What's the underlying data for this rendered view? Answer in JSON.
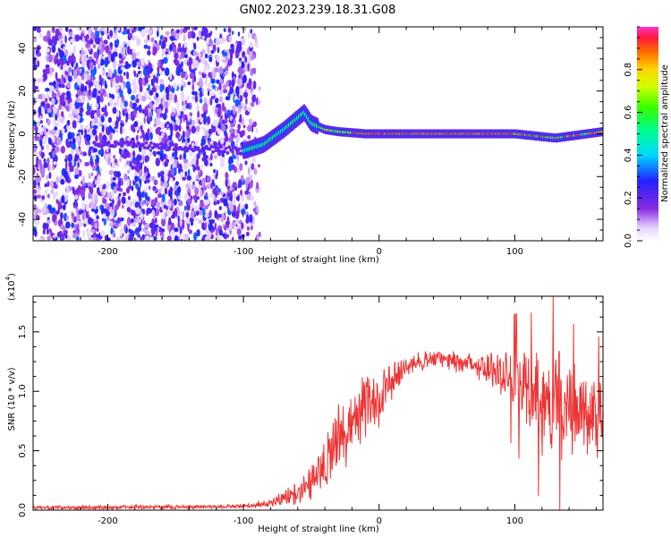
{
  "title": "GN02.2023.239.18.31.G08",
  "colors": {
    "snr_line": "#ee3333",
    "frame": "#000000",
    "grid": "#ffffff"
  },
  "chart_data": [
    {
      "type": "heatmap",
      "name": "spectrogram",
      "xlabel": "Height of straight line (km)",
      "ylabel": "Frequency (Hz)",
      "xlim": [
        -255,
        165
      ],
      "ylim": [
        -50,
        50
      ],
      "xticks": [
        -200,
        -100,
        0,
        100
      ],
      "xtick_labels": [
        "-200",
        "-100",
        "0",
        "100"
      ],
      "yticks": [
        -40,
        -20,
        0,
        20,
        40
      ],
      "ytick_labels": [
        "-40",
        "-20",
        "0",
        "20",
        "40"
      ],
      "colorbar": {
        "label": "Normalized spectral amplitude",
        "range": [
          0.0,
          1.0
        ],
        "ticks": [
          0.0,
          0.2,
          0.4,
          0.6,
          0.8
        ],
        "tick_labels": [
          "0.0",
          "0.2",
          "0.4",
          "0.6",
          "0.8"
        ],
        "colormap": "rainbow-white"
      },
      "signal_track": {
        "description_points_km_hz": [
          [
            -100,
            -8
          ],
          [
            -85,
            -5
          ],
          [
            -70,
            2
          ],
          [
            -55,
            10
          ],
          [
            -50,
            5
          ],
          [
            -40,
            2
          ],
          [
            -30,
            1
          ],
          [
            -10,
            0
          ],
          [
            50,
            0
          ],
          [
            100,
            0
          ],
          [
            130,
            -2
          ],
          [
            165,
            1
          ]
        ],
        "noise_region_km": [
          -255,
          -88
        ]
      }
    },
    {
      "type": "line",
      "name": "snr",
      "xlabel": "Height of straight line (km)",
      "ylabel": "SNR (10 * v/v)",
      "scale_label": "(x10",
      "scale_exponent": "4",
      "scale_close": ")",
      "xlim": [
        -255,
        165
      ],
      "ylim": [
        0,
        18000
      ],
      "xticks": [
        -200,
        -100,
        0,
        100
      ],
      "xtick_labels": [
        "-200",
        "-100",
        "0",
        "100"
      ],
      "yticks": [
        0,
        5000,
        10000,
        15000
      ],
      "ytick_labels": [
        "0.0",
        "0.5",
        "1.0",
        "1.5"
      ],
      "envelope": {
        "x": [
          -255,
          -100,
          -80,
          -60,
          -50,
          -40,
          -30,
          -20,
          -10,
          0,
          10,
          20,
          30,
          40,
          50,
          60,
          70,
          80,
          90,
          100,
          110,
          120,
          130,
          140,
          150,
          165
        ],
        "mean": [
          200,
          300,
          600,
          1500,
          2500,
          4000,
          6000,
          7500,
          8500,
          9500,
          11000,
          12000,
          12500,
          12700,
          12600,
          12400,
          12400,
          12000,
          11500,
          11000,
          10000,
          9000,
          9500,
          8500,
          8000,
          8000
        ],
        "spread": [
          150,
          150,
          300,
          800,
          1200,
          1800,
          2500,
          2500,
          2200,
          2000,
          1200,
          800,
          700,
          600,
          700,
          800,
          900,
          1200,
          1800,
          2500,
          3000,
          3500,
          4000,
          3500,
          3000,
          3000
        ]
      }
    }
  ]
}
